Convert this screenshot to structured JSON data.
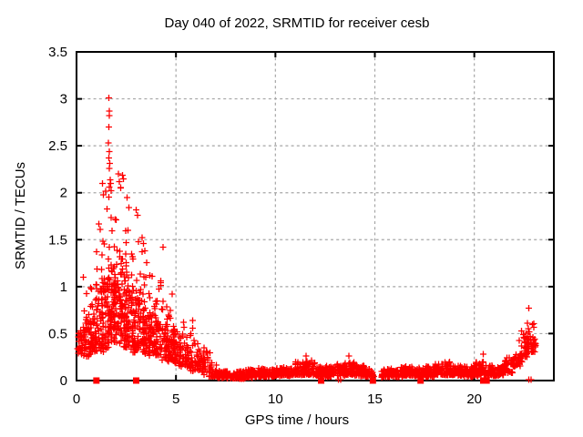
{
  "chart_data": {
    "type": "scatter",
    "title": "Day 040 of 2022, SRMTID for receiver cesb",
    "xlabel": "GPS time / hours",
    "ylabel": "SRMTID / TECUs",
    "xlim": [
      0,
      24
    ],
    "ylim": [
      0,
      3.5
    ],
    "xticks": [
      0,
      5,
      10,
      15,
      20
    ],
    "xticklabels": [
      "0",
      "5",
      "10",
      "15",
      "20"
    ],
    "yticks": [
      0,
      0.5,
      1,
      1.5,
      2,
      2.5,
      3,
      3.5
    ],
    "yticklabels": [
      "0",
      "0.5",
      "1",
      "1.5",
      "2",
      "2.5",
      "3",
      "3.5"
    ],
    "grid": true,
    "legend": "none",
    "seed": 1337,
    "colors": {
      "marker": "#ff0000",
      "grid": "#a6a6a6",
      "axis": "#000000",
      "text": "#000000",
      "background": "#ffffff"
    },
    "series": [
      {
        "name": "srmtid-points",
        "marker": "plus",
        "bins": [
          [
            0.05,
            0.45,
            40,
            0.28,
            0.95
          ],
          [
            0.35,
            0.75,
            42,
            0.25,
            1.1
          ],
          [
            0.65,
            1.05,
            46,
            0.3,
            1.25
          ],
          [
            0.95,
            1.35,
            52,
            0.3,
            1.9
          ],
          [
            1.25,
            1.65,
            58,
            0.35,
            2.1
          ],
          [
            1.55,
            1.95,
            60,
            0.4,
            2.0
          ],
          [
            1.85,
            2.25,
            60,
            0.4,
            1.9
          ],
          [
            2.15,
            2.55,
            58,
            0.35,
            2.2
          ],
          [
            2.45,
            2.85,
            55,
            0.35,
            1.9
          ],
          [
            2.75,
            3.15,
            54,
            0.3,
            1.8
          ],
          [
            3.05,
            3.45,
            50,
            0.3,
            1.55
          ],
          [
            3.35,
            3.75,
            46,
            0.28,
            1.45
          ],
          [
            3.65,
            4.05,
            44,
            0.25,
            1.3
          ],
          [
            3.95,
            4.35,
            42,
            0.25,
            1.15
          ],
          [
            4.25,
            4.65,
            40,
            0.22,
            1.0
          ],
          [
            4.55,
            4.95,
            38,
            0.2,
            0.95
          ],
          [
            4.85,
            5.25,
            34,
            0.18,
            0.8
          ],
          [
            5.15,
            5.55,
            30,
            0.15,
            0.72
          ],
          [
            5.45,
            5.85,
            28,
            0.13,
            0.65
          ],
          [
            5.75,
            6.15,
            26,
            0.1,
            0.6
          ],
          [
            6.05,
            6.45,
            24,
            0.08,
            0.45
          ],
          [
            6.35,
            6.75,
            22,
            0.06,
            0.32
          ],
          [
            6.65,
            7.05,
            20,
            0.04,
            0.2
          ],
          [
            7.0,
            7.5,
            46,
            0.03,
            0.12
          ],
          [
            7.5,
            8.0,
            46,
            0.02,
            0.1
          ],
          [
            8.0,
            8.5,
            46,
            0.02,
            0.1
          ],
          [
            8.5,
            9.0,
            46,
            0.03,
            0.12
          ],
          [
            9.0,
            9.5,
            46,
            0.04,
            0.13
          ],
          [
            9.5,
            10.0,
            46,
            0.04,
            0.12
          ],
          [
            10.0,
            10.5,
            46,
            0.05,
            0.14
          ],
          [
            10.5,
            11.0,
            46,
            0.05,
            0.13
          ],
          [
            11.0,
            11.5,
            48,
            0.06,
            0.2
          ],
          [
            11.5,
            12.0,
            48,
            0.06,
            0.22
          ],
          [
            12.0,
            12.5,
            46,
            0.05,
            0.15
          ],
          [
            12.5,
            13.0,
            46,
            0.04,
            0.16
          ],
          [
            13.0,
            13.5,
            46,
            0.05,
            0.18
          ],
          [
            13.5,
            14.0,
            46,
            0.06,
            0.2
          ],
          [
            14.0,
            14.5,
            46,
            0.05,
            0.16
          ],
          [
            14.5,
            15.0,
            44,
            0.04,
            0.13
          ],
          [
            15.0,
            15.5,
            40,
            0.03,
            0.12
          ],
          [
            15.5,
            16.0,
            44,
            0.04,
            0.13
          ],
          [
            16.0,
            16.5,
            46,
            0.04,
            0.14
          ],
          [
            16.5,
            17.0,
            46,
            0.05,
            0.15
          ],
          [
            17.0,
            17.5,
            44,
            0.04,
            0.14
          ],
          [
            17.5,
            18.0,
            46,
            0.04,
            0.15
          ],
          [
            18.0,
            18.5,
            48,
            0.06,
            0.18
          ],
          [
            18.5,
            19.0,
            48,
            0.06,
            0.2
          ],
          [
            19.0,
            19.5,
            46,
            0.05,
            0.16
          ],
          [
            19.5,
            20.0,
            46,
            0.04,
            0.15
          ],
          [
            20.0,
            20.5,
            46,
            0.05,
            0.2
          ],
          [
            20.5,
            21.0,
            44,
            0.05,
            0.16
          ],
          [
            21.0,
            21.5,
            44,
            0.05,
            0.14
          ],
          [
            21.5,
            22.0,
            40,
            0.08,
            0.25
          ],
          [
            22.0,
            22.4,
            34,
            0.15,
            0.45
          ],
          [
            22.3,
            22.7,
            30,
            0.25,
            0.65
          ],
          [
            22.6,
            23.0,
            26,
            0.3,
            0.8
          ],
          [
            22.9,
            23.1,
            12,
            0.3,
            0.5
          ]
        ],
        "outliers": [
          [
            1.62,
            3.01
          ],
          [
            1.64,
            2.87
          ],
          [
            1.66,
            2.82
          ],
          [
            1.63,
            2.7
          ],
          [
            1.6,
            2.53
          ],
          [
            1.65,
            2.44
          ],
          [
            1.62,
            2.37
          ],
          [
            1.68,
            2.31
          ],
          [
            1.64,
            2.26
          ],
          [
            1.7,
            2.14
          ],
          [
            1.72,
            2.1
          ],
          [
            1.66,
            2.06
          ],
          [
            1.74,
            2.02
          ],
          [
            2.1,
            2.2
          ],
          [
            2.16,
            2.12
          ],
          [
            2.22,
            2.05
          ],
          [
            1.3,
            2.1
          ],
          [
            1.35,
            1.98
          ],
          [
            2.55,
            1.95
          ],
          [
            3.0,
            1.82
          ],
          [
            3.06,
            1.76
          ],
          [
            3.3,
            1.52
          ],
          [
            3.36,
            1.46
          ],
          [
            4.35,
            1.42
          ],
          [
            0.35,
            1.1
          ],
          [
            4.8,
            0.92
          ],
          [
            5.85,
            0.64
          ],
          [
            11.55,
            0.26
          ],
          [
            13.7,
            0.26
          ],
          [
            20.45,
            0.28
          ]
        ],
        "near_zero_points": [
          [
            13.16,
            0.012
          ],
          [
            13.28,
            0.012
          ],
          [
            22.74,
            0.012
          ],
          [
            22.86,
            0.012
          ]
        ],
        "gaps": [
          [
            14.95,
            15.3
          ]
        ]
      },
      {
        "name": "flag-markers",
        "marker": "filled-square",
        "y": 0,
        "x_positions": [
          1.0,
          3.0,
          12.3,
          14.9,
          17.3,
          20.45,
          20.62
        ]
      }
    ]
  }
}
